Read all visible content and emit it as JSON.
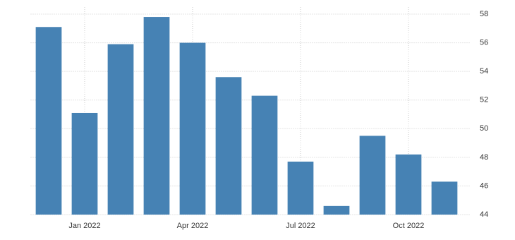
{
  "chart_data": {
    "type": "bar",
    "categories": [
      null,
      "Jan 2022",
      null,
      null,
      "Apr 2022",
      null,
      null,
      "Jul 2022",
      null,
      null,
      "Oct 2022",
      null
    ],
    "values": [
      57.1,
      51.1,
      55.9,
      57.8,
      56.0,
      53.6,
      52.3,
      47.7,
      44.6,
      49.5,
      48.2,
      46.3
    ],
    "color": "#4682b4",
    "ylim": [
      44,
      58
    ],
    "yticks": [
      44,
      46,
      48,
      50,
      52,
      54,
      56,
      58
    ],
    "grid": true
  }
}
